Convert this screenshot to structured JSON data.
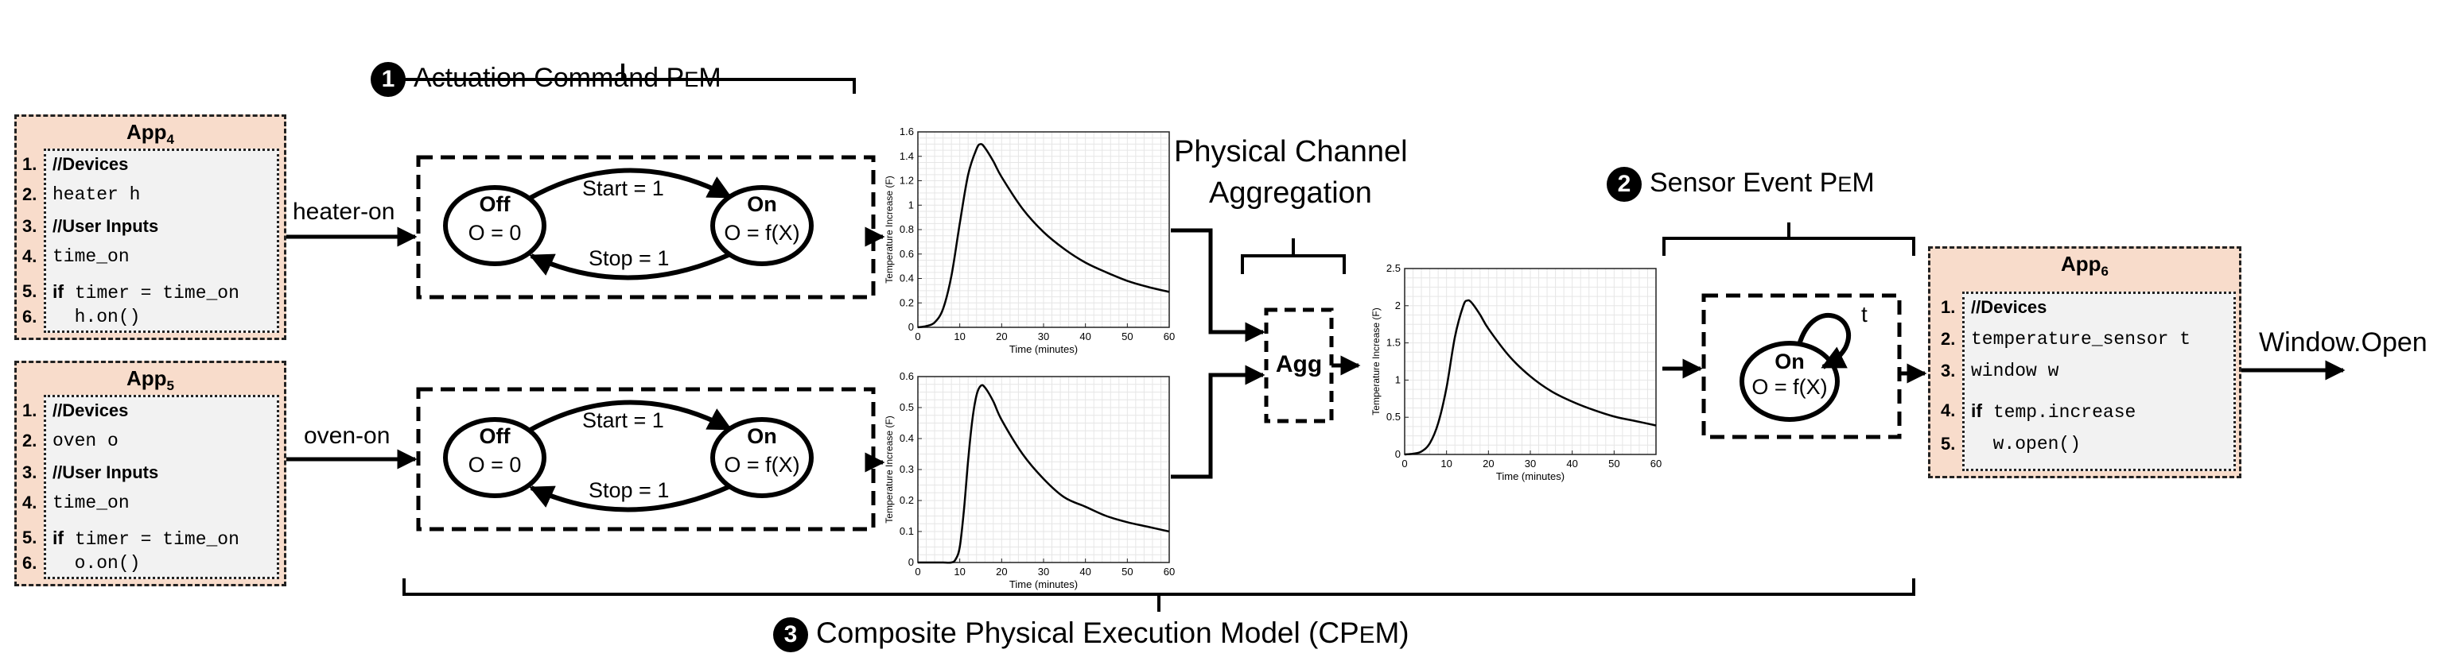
{
  "header_labels": {
    "actuation": {
      "badge": "1",
      "text": "Actuation Command P",
      "sc": "E",
      "suffix": "M"
    },
    "sensor": {
      "badge": "2",
      "text": "Sensor Event P",
      "sc": "E",
      "suffix": "M"
    },
    "composite": {
      "badge": "3",
      "text": "Composite Physical Execution Model (CP",
      "sc": "E",
      "suffix": "M)"
    },
    "channel_line1": "Physical Channel",
    "channel_line2": "Aggregation"
  },
  "apps": [
    {
      "title": "App",
      "sub": "4",
      "lines": [
        {
          "n": "1.",
          "text": "//Devices",
          "style": "bold"
        },
        {
          "n": "2.",
          "text": "heater h",
          "style": "mono"
        },
        {
          "n": "3.",
          "text": "//User Inputs",
          "style": "bold"
        },
        {
          "n": "4.",
          "text": "time_on",
          "style": "mono"
        },
        {
          "n": "5.",
          "kw": "if",
          "text": " timer = time_on",
          "style": "mono"
        },
        {
          "n": "6.",
          "text": "  h.on()",
          "style": "mono"
        }
      ]
    },
    {
      "title": "App",
      "sub": "5",
      "lines": [
        {
          "n": "1.",
          "text": "//Devices",
          "style": "bold"
        },
        {
          "n": "2.",
          "text": "oven o",
          "style": "mono"
        },
        {
          "n": "3.",
          "text": "//User Inputs",
          "style": "bold"
        },
        {
          "n": "4.",
          "text": "time_on",
          "style": "mono"
        },
        {
          "n": "5.",
          "kw": "if",
          "text": " timer = time_on",
          "style": "mono"
        },
        {
          "n": "6.",
          "text": "  o.on()",
          "style": "mono"
        }
      ]
    },
    {
      "title": "App",
      "sub": "6",
      "lines": [
        {
          "n": "1.",
          "text": "//Devices",
          "style": "bold"
        },
        {
          "n": "2.",
          "text": "temperature_sensor t",
          "style": "mono"
        },
        {
          "n": "3.",
          "text": "window w",
          "style": "mono"
        },
        {
          "n": "4.",
          "kw": "if",
          "text": " temp.increase",
          "style": "mono"
        },
        {
          "n": "5.",
          "text": "  w.open()",
          "style": "mono"
        }
      ]
    }
  ],
  "edge_labels": {
    "heater_on": "heater-on",
    "oven_on": "oven-on",
    "window_open": "Window.Open"
  },
  "state_machines": {
    "off_title": "Off",
    "off_sub": "O = 0",
    "on_title": "On",
    "on_sub": "O = f(X)",
    "start": "Start = 1",
    "stop": "Stop = 1",
    "self_loop": "t",
    "agg": "Agg"
  },
  "chart_data": [
    {
      "type": "line",
      "name": "heater",
      "xlabel": "Time (minutes)",
      "ylabel": "Temperature Increase (F)",
      "xlim": [
        0,
        60
      ],
      "ylim": [
        0,
        1.6
      ],
      "xticks": [
        "0",
        "10",
        "20",
        "30",
        "40",
        "50",
        "60"
      ],
      "yticks": [
        "0",
        "0.2",
        "0.4",
        "0.6",
        "0.8",
        "1",
        "1.2",
        "1.4",
        "1.6"
      ],
      "grid": true,
      "x": [
        0,
        2,
        4,
        6,
        8,
        10,
        12,
        14,
        15,
        16,
        18,
        20,
        25,
        30,
        35,
        40,
        45,
        50,
        55,
        60
      ],
      "y": [
        0,
        0.01,
        0.04,
        0.15,
        0.42,
        0.85,
        1.25,
        1.46,
        1.5,
        1.47,
        1.36,
        1.23,
        0.97,
        0.78,
        0.64,
        0.53,
        0.45,
        0.38,
        0.33,
        0.29
      ]
    },
    {
      "type": "line",
      "name": "oven",
      "xlabel": "Time (minutes)",
      "ylabel": "Temperature Increase (F)",
      "xlim": [
        0,
        60
      ],
      "ylim": [
        0,
        0.6
      ],
      "xticks": [
        "0",
        "10",
        "20",
        "30",
        "40",
        "50",
        "60"
      ],
      "yticks": [
        "0",
        "0.1",
        "0.2",
        "0.3",
        "0.4",
        "0.5",
        "0.6"
      ],
      "grid": true,
      "x": [
        0,
        2,
        4,
        6,
        8,
        9,
        10,
        11,
        12,
        13,
        14,
        15,
        16,
        18,
        20,
        25,
        30,
        35,
        40,
        45,
        50,
        55,
        60
      ],
      "y": [
        0,
        0,
        0,
        0,
        0,
        0.01,
        0.05,
        0.17,
        0.33,
        0.46,
        0.54,
        0.57,
        0.565,
        0.52,
        0.46,
        0.35,
        0.27,
        0.21,
        0.18,
        0.15,
        0.13,
        0.115,
        0.1
      ]
    },
    {
      "type": "line",
      "name": "aggregate",
      "xlabel": "Time (minutes)",
      "ylabel": "Temperature Increase (F)",
      "xlim": [
        0,
        60
      ],
      "ylim": [
        0,
        2.5
      ],
      "xticks": [
        "0",
        "10",
        "20",
        "30",
        "40",
        "50",
        "60"
      ],
      "yticks": [
        "0",
        "0.5",
        "1",
        "1.5",
        "2",
        "2.5"
      ],
      "grid": true,
      "x": [
        0,
        2,
        4,
        6,
        8,
        10,
        12,
        14,
        15,
        16,
        18,
        20,
        25,
        30,
        35,
        40,
        45,
        50,
        55,
        60
      ],
      "y": [
        0,
        0.01,
        0.04,
        0.15,
        0.42,
        0.9,
        1.58,
        2.0,
        2.07,
        2.04,
        1.88,
        1.69,
        1.32,
        1.05,
        0.85,
        0.71,
        0.6,
        0.51,
        0.45,
        0.39
      ]
    }
  ]
}
